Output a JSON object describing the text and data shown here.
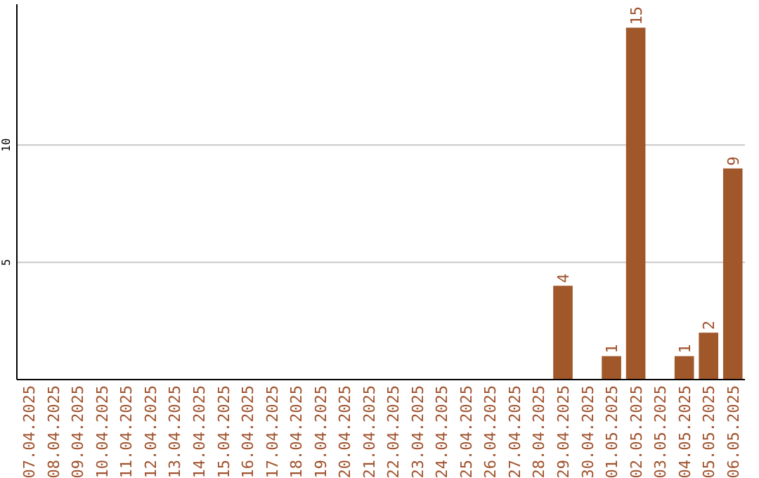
{
  "chart_data": {
    "type": "bar",
    "categories": [
      "07.04.2025",
      "08.04.2025",
      "09.04.2025",
      "10.04.2025",
      "11.04.2025",
      "12.04.2025",
      "13.04.2025",
      "14.04.2025",
      "15.04.2025",
      "16.04.2025",
      "17.04.2025",
      "18.04.2025",
      "19.04.2025",
      "20.04.2025",
      "21.04.2025",
      "22.04.2025",
      "23.04.2025",
      "24.04.2025",
      "25.04.2025",
      "26.04.2025",
      "27.04.2025",
      "28.04.2025",
      "29.04.2025",
      "30.04.2025",
      "01.05.2025",
      "02.05.2025",
      "03.05.2025",
      "04.05.2025",
      "05.05.2025",
      "06.05.2025"
    ],
    "values": [
      0,
      0,
      0,
      0,
      0,
      0,
      0,
      0,
      0,
      0,
      0,
      0,
      0,
      0,
      0,
      0,
      0,
      0,
      0,
      0,
      0,
      0,
      4,
      0,
      1,
      15,
      0,
      1,
      2,
      9
    ],
    "value_labels": [
      null,
      null,
      null,
      null,
      null,
      null,
      null,
      null,
      null,
      null,
      null,
      null,
      null,
      null,
      null,
      null,
      null,
      null,
      null,
      null,
      null,
      null,
      "4",
      null,
      "1",
      "15",
      null,
      "1",
      "2",
      "9"
    ],
    "color": "#a0572a",
    "ylim": [
      0,
      16
    ],
    "yticks": [
      5,
      10
    ],
    "grid": "y"
  }
}
